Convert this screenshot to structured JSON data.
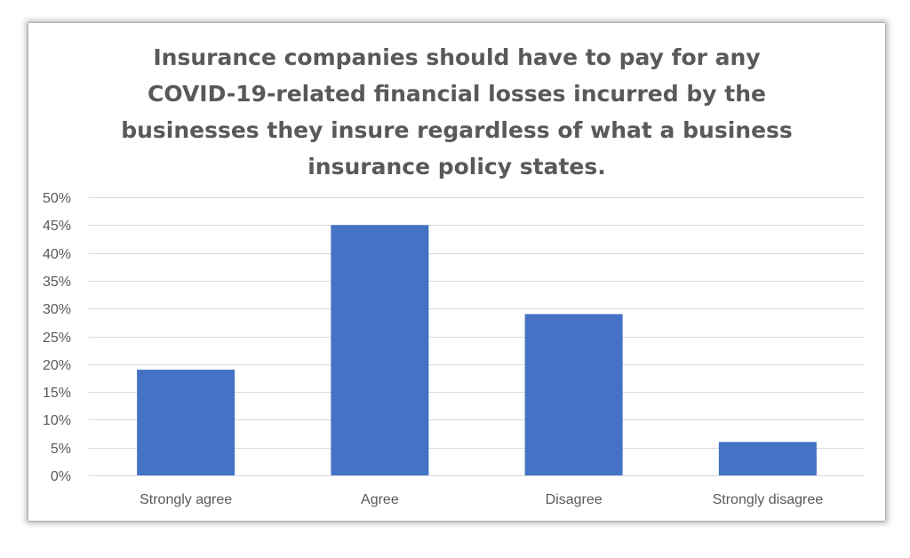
{
  "chart_data": {
    "type": "bar",
    "title": "Insurance companies should have to pay for any COVID-19-related financial losses incurred by the businesses they insure regardless of what a business insurance policy states.",
    "categories": [
      "Strongly agree",
      "Agree",
      "Disagree",
      "Strongly disagree"
    ],
    "values": [
      19,
      45,
      29,
      6
    ],
    "y_unit": "%",
    "ylim": [
      0,
      50
    ],
    "yticks": [
      0,
      5,
      10,
      15,
      20,
      25,
      30,
      35,
      40,
      45,
      50
    ],
    "ytick_labels": [
      "0%",
      "5%",
      "10%",
      "15%",
      "20%",
      "25%",
      "30%",
      "35%",
      "40%",
      "45%",
      "50%"
    ],
    "xlabel": "",
    "ylabel": "",
    "grid": true,
    "legend": "none",
    "bar_color": "#4472C4",
    "grid_color": "#D9D9D9",
    "text_color": "#595959"
  }
}
